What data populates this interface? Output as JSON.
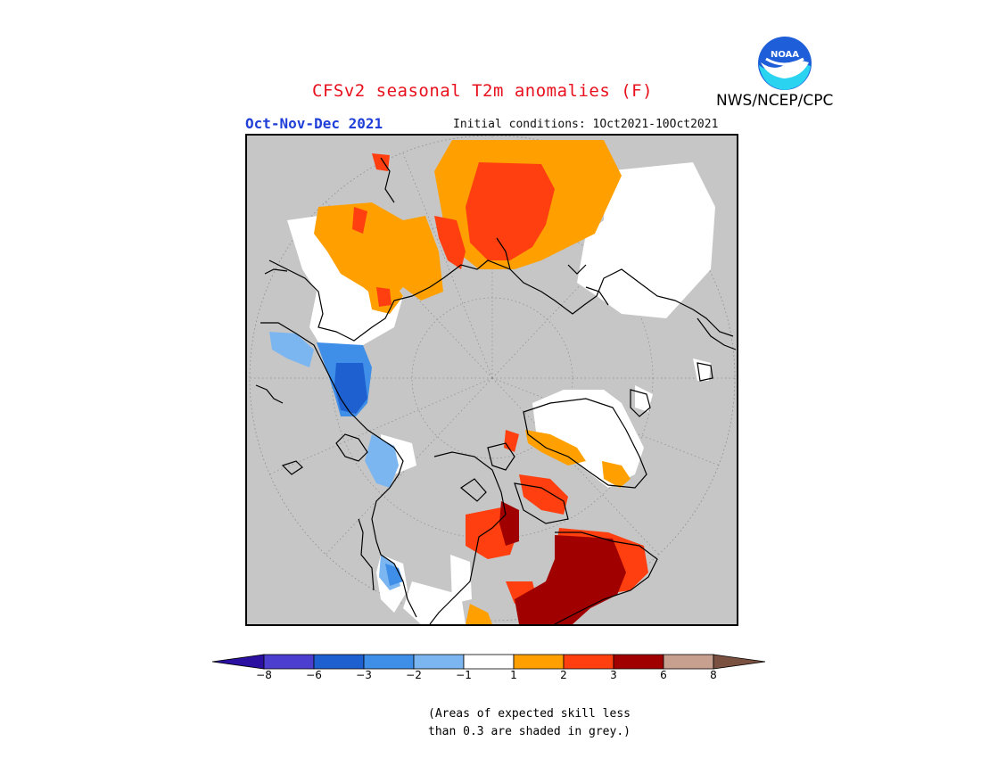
{
  "header": {
    "title": "CFSv2 seasonal T2m anomalies (F)",
    "period": "Oct-Nov-Dec 2021",
    "initial_conditions": "Initial conditions: 1Oct2021-10Oct2021",
    "organization": "NWS/NCEP/CPC",
    "logo_text": "NOAA",
    "logo_icon": "noaa-logo-icon"
  },
  "map": {
    "projection": "north-polar-stereographic",
    "background_color": "#c6c6c6",
    "land_outline_color": "#000000",
    "graticule": "dotted"
  },
  "colorbar": {
    "colors": [
      "#2a0fa0",
      "#4c3fd0",
      "#1f60d0",
      "#3f8ee8",
      "#7cb6f0",
      "#ffffff",
      "#ffa000",
      "#ff3f10",
      "#a00000",
      "#c8a090",
      "#7a5040"
    ],
    "labels": [
      "−8",
      "−6",
      "−3",
      "−2",
      "−1",
      "1",
      "2",
      "3",
      "6",
      "8"
    ]
  },
  "note": {
    "line1": "(Areas of expected skill less",
    "line2": "than 0.3 are shaded in grey.)"
  }
}
